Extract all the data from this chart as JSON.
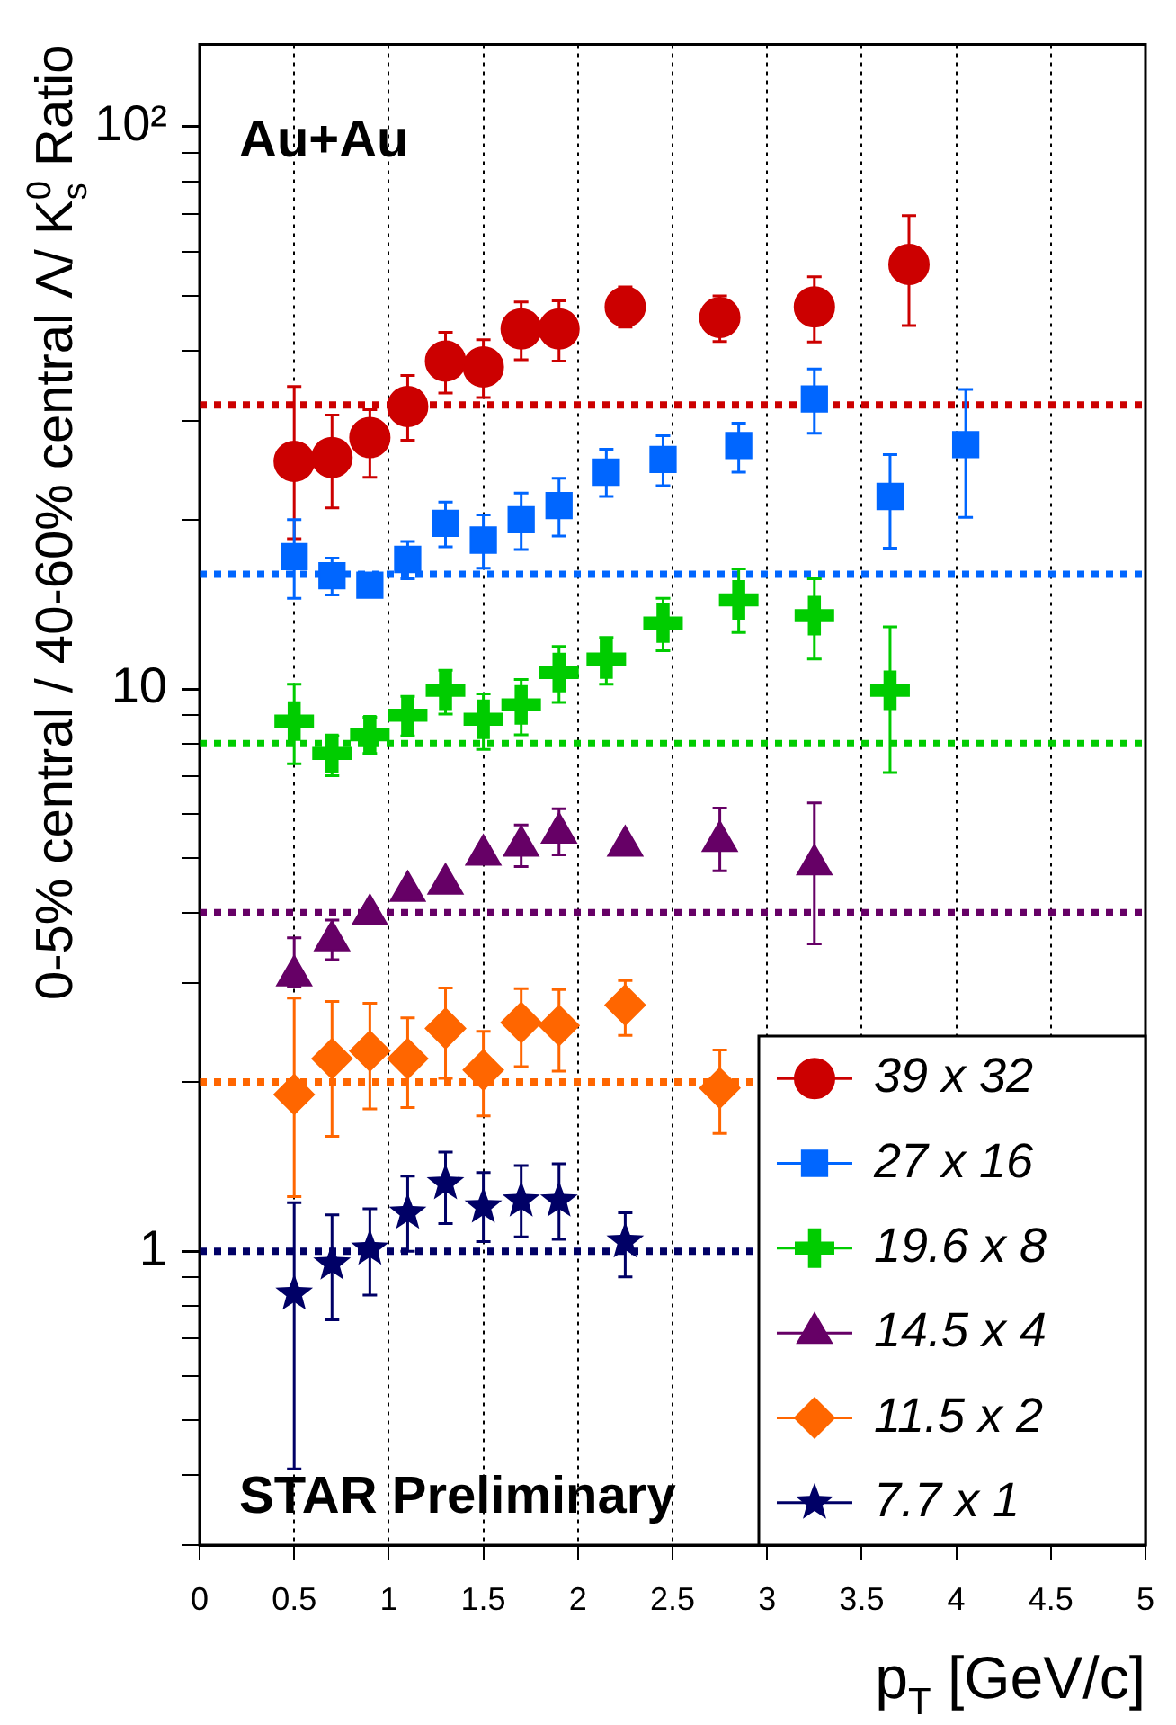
{
  "chart_data": {
    "type": "scatter",
    "xlabel": "p$_{T}$ [GeV/c]",
    "ylabel": "0-5% central / 40-60% central Λ/ K$^{0}$$_{s}$ Ratio",
    "annotations": [
      "Au+Au",
      "STAR Preliminary"
    ],
    "log": "y",
    "xlim": [
      0,
      5
    ],
    "xticks": [
      0,
      0.5,
      1,
      1.5,
      2,
      2.5,
      3,
      3.5,
      4,
      4.5,
      5
    ],
    "ylim": [
      0.3,
      140
    ],
    "yticks": [
      {
        "value": 0.3,
        "label": null
      },
      {
        "value": 0.4,
        "label": null
      },
      {
        "value": 0.5,
        "label": null
      },
      {
        "value": 0.6,
        "label": null
      },
      {
        "value": 0.7,
        "label": null
      },
      {
        "value": 0.8,
        "label": null
      },
      {
        "value": 0.9,
        "label": null
      },
      1,
      {
        "value": 2,
        "label": null
      },
      {
        "value": 3,
        "label": null
      },
      {
        "value": 4,
        "label": null
      },
      {
        "value": 5,
        "label": null
      },
      {
        "value": 6,
        "label": null
      },
      {
        "value": 7,
        "label": null
      },
      {
        "value": 8,
        "label": null
      },
      {
        "value": 9,
        "label": null
      },
      10,
      {
        "value": 20,
        "label": null
      },
      {
        "value": 30,
        "label": null
      },
      {
        "value": 40,
        "label": null
      },
      {
        "value": 50,
        "label": null
      },
      {
        "value": 60,
        "label": null
      },
      {
        "value": 70,
        "label": null
      },
      {
        "value": 80,
        "label": null
      },
      {
        "value": 90,
        "label": null
      },
      {
        "value": 100,
        "label": "10²"
      }
    ],
    "grid": "x",
    "legend": "bottom right",
    "series": [
      {
        "name": "39 x 32",
        "color": "#cc0000",
        "marker": "circle",
        "x": [
          0.5,
          0.7,
          0.9,
          1.1,
          1.3,
          1.5,
          1.7,
          1.9,
          2.25,
          2.75,
          3.25,
          3.75
        ],
        "values": [
          25.4,
          25.8,
          28.0,
          31.8,
          38.3,
          37.4,
          43.7,
          43.7,
          47.8,
          45.8,
          47.8,
          56.9
        ],
        "errors": [
          [
            18.5,
            34.5
          ],
          [
            21.0,
            30.7
          ],
          [
            23.8,
            31.4
          ],
          [
            27.7,
            36.1
          ],
          [
            33.6,
            43.1
          ],
          [
            33.0,
            41.8
          ],
          [
            38.5,
            48.8
          ],
          [
            38.3,
            49
          ],
          [
            44,
            51.9
          ],
          [
            41.5,
            50
          ],
          [
            41.4,
            54.1
          ],
          [
            44.3,
            69.5
          ]
        ]
      },
      {
        "name": "27 x 16",
        "color": "#0066ff",
        "marker": "square",
        "x": [
          0.5,
          0.7,
          0.9,
          1.1,
          1.3,
          1.5,
          1.7,
          1.9,
          2.15,
          2.45,
          2.85,
          3.25,
          3.65,
          4.05
        ],
        "values": [
          17.2,
          15.9,
          15.3,
          17.0,
          19.7,
          18.4,
          20.0,
          21.2,
          24.3,
          25.6,
          27.1,
          32.8,
          22.0,
          27.2
        ],
        "errors": [
          [
            14.5,
            20.0
          ],
          [
            14.7,
            17.1
          ],
          null,
          [
            15.7,
            18.3
          ],
          [
            17.9,
            21.5
          ],
          [
            16.4,
            20.4
          ],
          [
            17.7,
            22.3
          ],
          [
            18.7,
            23.7
          ],
          [
            22.0,
            26.7
          ],
          [
            23.0,
            28.2
          ],
          [
            24.3,
            29.7
          ],
          [
            28.5,
            37.1
          ],
          [
            17.8,
            26.1
          ],
          [
            20.2,
            34.1
          ]
        ]
      },
      {
        "name": "19.6 x 8",
        "color": "#00cc00",
        "marker": "cross",
        "x": [
          0.5,
          0.7,
          0.9,
          1.1,
          1.3,
          1.5,
          1.7,
          1.9,
          2.15,
          2.45,
          2.85,
          3.25,
          3.65
        ],
        "values": [
          8.77,
          7.68,
          8.29,
          8.98,
          9.95,
          8.83,
          9.37,
          10.7,
          11.3,
          13.1,
          14.4,
          13.5,
          9.95
        ],
        "errors": [
          [
            7.36,
            10.2
          ],
          [
            7.01,
            8.25
          ],
          [
            7.68,
            8.91
          ],
          [
            8.25,
            9.7
          ],
          [
            9.02,
            10.8
          ],
          [
            7.81,
            9.8
          ],
          [
            8.29,
            10.4
          ],
          [
            9.46,
            11.9
          ],
          [
            10.2,
            12.35
          ],
          [
            11.7,
            14.5
          ],
          [
            12.6,
            16.35
          ],
          [
            11.3,
            15.7
          ],
          [
            7.1,
            12.9
          ]
        ]
      },
      {
        "name": "14.5 x 4",
        "color": "#660066",
        "marker": "triangle",
        "x": [
          0.5,
          0.7,
          0.9,
          1.1,
          1.3,
          1.5,
          1.7,
          1.9,
          2.25,
          2.75,
          3.25
        ],
        "values": [
          3.09,
          3.57,
          3.97,
          4.37,
          4.5,
          5.07,
          5.26,
          5.55,
          5.26,
          5.36,
          4.87
        ],
        "errors": [
          [
            2.95,
            3.61
          ],
          [
            3.3,
            3.88
          ],
          [
            3.85,
            4.1
          ],
          [
            4.25,
            4.5
          ],
          [
            4.38,
            4.62
          ],
          [
            4.9,
            5.25
          ],
          [
            4.83,
            5.73
          ],
          [
            5.07,
            6.12
          ],
          [
            5.1,
            5.4
          ],
          [
            4.75,
            6.14
          ],
          [
            3.52,
            6.27
          ]
        ]
      },
      {
        "name": "11.5 x 2",
        "color": "#ff6600",
        "marker": "diamond",
        "x": [
          0.5,
          0.7,
          0.9,
          1.1,
          1.3,
          1.5,
          1.7,
          1.9,
          2.25,
          2.75
        ],
        "values": [
          1.9,
          2.2,
          2.27,
          2.2,
          2.49,
          2.1,
          2.55,
          2.52,
          2.74,
          1.95
        ],
        "errors": [
          [
            1.25,
            2.82
          ],
          [
            1.6,
            2.78
          ],
          [
            1.79,
            2.76
          ],
          [
            1.8,
            2.6
          ],
          [
            2.03,
            2.94
          ],
          [
            1.74,
            2.46
          ],
          [
            2.13,
            2.93
          ],
          [
            2.09,
            2.92
          ],
          [
            2.42,
            3.03
          ],
          [
            1.62,
            2.28
          ]
        ]
      },
      {
        "name": "7.7 x 1",
        "color": "#000066",
        "marker": "star",
        "x": [
          0.5,
          0.7,
          0.9,
          1.1,
          1.3,
          1.5,
          1.7,
          1.9,
          2.25
        ],
        "values": [
          0.84,
          0.95,
          1.01,
          1.17,
          1.32,
          1.2,
          1.23,
          1.23,
          1.04
        ],
        "errors": [
          [
            0.41,
            1.22
          ],
          [
            0.755,
            1.16
          ],
          [
            0.835,
            1.19
          ],
          [
            1.0,
            1.36
          ],
          [
            1.12,
            1.5
          ],
          [
            1.04,
            1.38
          ],
          [
            1.06,
            1.42
          ],
          [
            1.05,
            1.43
          ],
          [
            0.9,
            1.17
          ]
        ]
      }
    ],
    "ref_lines": [
      {
        "axis": "y",
        "value": 32,
        "color": "#cc0000",
        "line_style": "dotted"
      },
      {
        "axis": "y",
        "value": 16,
        "color": "#0066ff",
        "line_style": "dotted"
      },
      {
        "axis": "y",
        "value": 8,
        "color": "#00cc00",
        "line_style": "dotted"
      },
      {
        "axis": "y",
        "value": 4,
        "color": "#660066",
        "line_style": "dotted"
      },
      {
        "axis": "y",
        "value": 2,
        "color": "#ff6600",
        "line_style": "dotted"
      },
      {
        "axis": "y",
        "value": 1,
        "color": "#000066",
        "line_style": "dotted"
      }
    ]
  }
}
